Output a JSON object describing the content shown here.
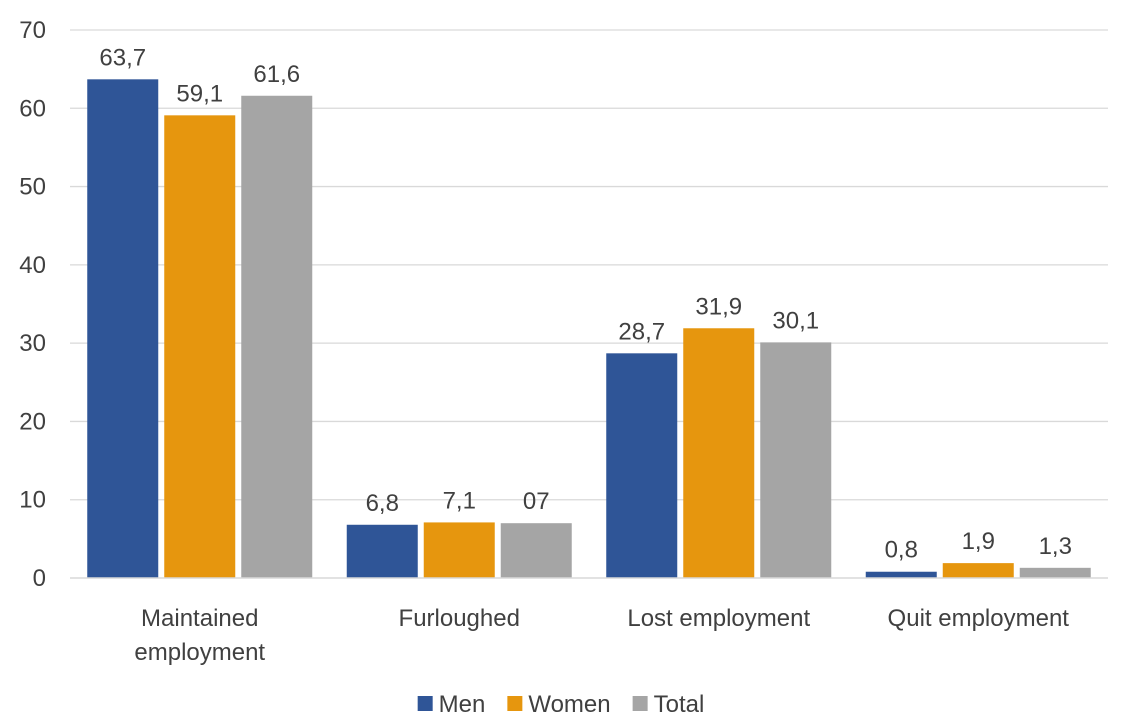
{
  "chart_data": {
    "type": "bar",
    "title": "",
    "xlabel": "",
    "ylabel": "",
    "ylim": [
      0,
      70
    ],
    "yticks": [
      0,
      10,
      20,
      30,
      40,
      50,
      60,
      70
    ],
    "grid": true,
    "legend_position": "bottom",
    "categories": [
      [
        "Maintained",
        "employment"
      ],
      [
        "Furloughed"
      ],
      [
        "Lost employment"
      ],
      [
        "Quit employment"
      ]
    ],
    "series": [
      {
        "name": "Men",
        "color": "#2F5597",
        "values": [
          63.7,
          6.8,
          28.7,
          0.8
        ],
        "labels": [
          "63,7",
          "6,8",
          "28,7",
          "0,8"
        ]
      },
      {
        "name": "Women",
        "color": "#E6960E",
        "values": [
          59.1,
          7.1,
          31.9,
          1.9
        ],
        "labels": [
          "59,1",
          "7,1",
          "31,9",
          "1,9"
        ]
      },
      {
        "name": "Total",
        "color": "#A5A5A5",
        "values": [
          61.6,
          7.0,
          30.1,
          1.3
        ],
        "labels": [
          "61,6",
          "07",
          "30,1",
          "1,3"
        ]
      }
    ]
  }
}
